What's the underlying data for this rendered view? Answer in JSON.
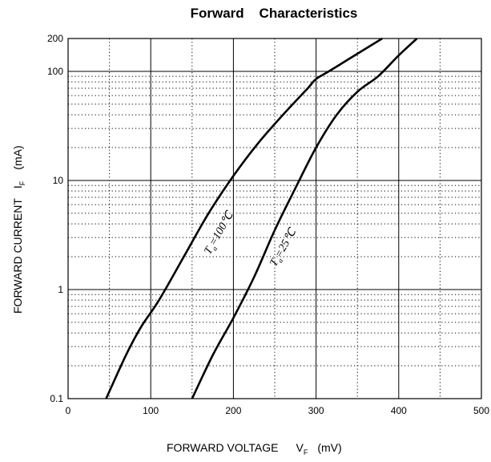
{
  "chart_data": {
    "type": "line",
    "title": "Forward    Characteristics",
    "xlabel": {
      "main": "FORWARD VOLTAGE",
      "symbol": "V",
      "subscript": "F",
      "unit": "(mV)"
    },
    "ylabel": {
      "main": "FORWARD CURRENT",
      "symbol": "I",
      "subscript": "F",
      "unit": "(mA)"
    },
    "xlim": [
      0,
      500
    ],
    "ylim": [
      0.1,
      200
    ],
    "yscale": "log",
    "grid": true,
    "x_ticks": [
      {
        "value": 0,
        "label": "0"
      },
      {
        "value": 100,
        "label": "100"
      },
      {
        "value": 200,
        "label": "200"
      },
      {
        "value": 300,
        "label": "300"
      },
      {
        "value": 400,
        "label": "400"
      },
      {
        "value": 500,
        "label": "500"
      }
    ],
    "y_ticks": [
      {
        "value": 0.1,
        "label": "0.1"
      },
      {
        "value": 1,
        "label": "1"
      },
      {
        "value": 10,
        "label": "10"
      },
      {
        "value": 100,
        "label": "100"
      },
      {
        "value": 200,
        "label": "200"
      }
    ],
    "series": [
      {
        "name": "Ta=100℃",
        "label_prefix": "T",
        "label_sub": "a",
        "label_suffix": "=100℃",
        "x": [
          46,
          70,
          88,
          110,
          140,
          170,
          200,
          230,
          260,
          290,
          300,
          320,
          380
        ],
        "y": [
          0.1,
          0.25,
          0.45,
          0.8,
          2.0,
          5.0,
          11,
          22,
          40,
          70,
          85,
          105,
          200
        ]
      },
      {
        "name": "Ta=25℃",
        "label_prefix": "T",
        "label_sub": "a",
        "label_suffix": "=25℃",
        "x": [
          150,
          175,
          200,
          225,
          250,
          275,
          300,
          325,
          350,
          375,
          400,
          422
        ],
        "y": [
          0.1,
          0.25,
          0.55,
          1.3,
          3.5,
          8.5,
          20,
          40,
          65,
          90,
          140,
          200
        ]
      }
    ]
  }
}
